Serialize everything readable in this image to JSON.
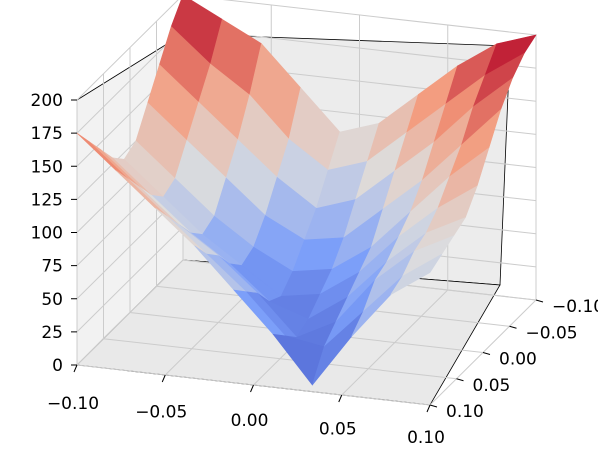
{
  "chart_data": {
    "type": "surface3d",
    "title": "",
    "xlabel": "",
    "ylabel": "",
    "zlabel": "",
    "colormap": "coolwarm",
    "colors": {
      "low": "#3b4cc0",
      "mid": "#dddddd",
      "high": "#b40426",
      "pane": "#f2f2f2",
      "grid": "#cccccc"
    },
    "grid": true,
    "x_ticks": [
      "−0.10",
      "−0.05",
      "0.00",
      "0.05",
      "0.10"
    ],
    "y_ticks": [
      "−0.10",
      "−0.05",
      "0.00",
      "0.05",
      "0.10"
    ],
    "z_ticks": [
      "0",
      "25",
      "50",
      "75",
      "100",
      "125",
      "150",
      "175",
      "200"
    ],
    "xlim": [
      -0.1,
      0.1
    ],
    "ylim": [
      -0.1,
      0.1
    ],
    "zlim": [
      0,
      200
    ],
    "surface_z": [
      [
        200,
        185,
        170,
        140,
        110,
        120,
        145,
        170,
        190,
        200
      ],
      [
        185,
        160,
        140,
        110,
        90,
        100,
        125,
        150,
        175,
        195
      ],
      [
        165,
        140,
        115,
        90,
        70,
        80,
        105,
        130,
        160,
        185
      ],
      [
        145,
        120,
        95,
        70,
        55,
        60,
        85,
        110,
        140,
        170
      ],
      [
        125,
        100,
        75,
        55,
        40,
        45,
        65,
        95,
        125,
        150
      ],
      [
        120,
        95,
        70,
        50,
        30,
        35,
        55,
        85,
        110,
        130
      ],
      [
        130,
        105,
        80,
        60,
        35,
        25,
        45,
        75,
        100,
        115
      ],
      [
        145,
        120,
        95,
        75,
        50,
        20,
        35,
        70,
        95,
        110
      ],
      [
        160,
        135,
        110,
        85,
        60,
        30,
        25,
        55,
        85,
        105
      ],
      [
        175,
        150,
        125,
        100,
        70,
        40,
        5,
        45,
        80,
        100
      ]
    ]
  }
}
